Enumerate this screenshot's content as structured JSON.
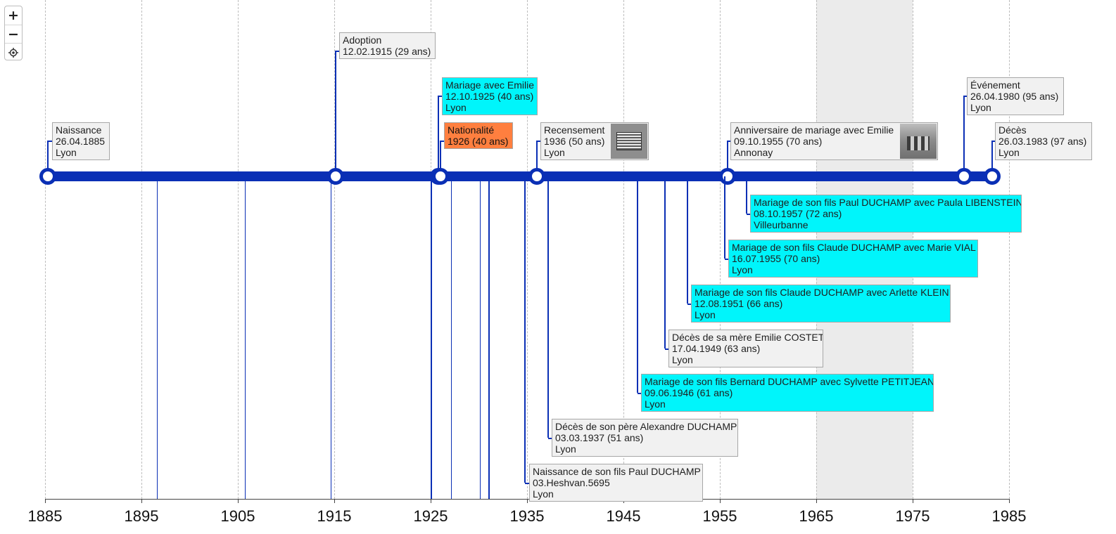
{
  "timeline": {
    "axis_years": [
      1885,
      1895,
      1905,
      1915,
      1925,
      1935,
      1945,
      1955,
      1965,
      1975,
      1985
    ],
    "axis_range": [
      1885,
      1985
    ],
    "shaded_period": [
      1965,
      1975
    ],
    "span": [
      1885.32,
      1983.23
    ],
    "colors": {
      "line": "#0a2fb5",
      "cyan": "#00f5fb",
      "orange": "#ff7f3f",
      "grey_card": "#f1f1f1"
    },
    "stub_lines_years": [
      1896.6,
      1905.7,
      1914.6,
      1925.0,
      1927.1,
      1930.1,
      1931.0
    ]
  },
  "controls": {
    "zoom_in": "+",
    "zoom_out": "−",
    "recenter_icon": "target-icon"
  },
  "events": [
    {
      "id": "naissance",
      "year": 1885.32,
      "marker": true,
      "color": "grey",
      "lines": [
        "Naissance",
        "26.04.1885",
        "Lyon"
      ]
    },
    {
      "id": "adoption",
      "year": 1915.11,
      "marker": true,
      "color": "grey",
      "lines": [
        "Adoption",
        "12.02.1915 (29 ans)"
      ]
    },
    {
      "id": "mariage-emilie",
      "year": 1925.78,
      "marker": true,
      "color": "cyan",
      "lines": [
        "Mariage avec Emilie",
        "12.10.1925 (40 ans)",
        "Lyon"
      ]
    },
    {
      "id": "nationalite",
      "year": 1926.0,
      "marker": true,
      "color": "orange",
      "lines": [
        "Nationalité",
        "1926 (40 ans)"
      ]
    },
    {
      "id": "recensement",
      "year": 1936.0,
      "marker": true,
      "color": "grey",
      "thumbnail": "document",
      "lines": [
        "Recensement",
        "1936 (50 ans)",
        "Lyon"
      ]
    },
    {
      "id": "anniversaire-mariage",
      "year": 1955.77,
      "marker": true,
      "color": "grey",
      "thumbnail": "photo",
      "lines": [
        "Anniversaire de mariage avec Emilie",
        "09.10.1955 (70 ans)",
        "Annonay"
      ]
    },
    {
      "id": "evenement",
      "year": 1980.32,
      "marker": true,
      "color": "grey",
      "lines": [
        "Événement",
        "26.04.1980 (95 ans)",
        "Lyon"
      ]
    },
    {
      "id": "deces",
      "year": 1983.23,
      "marker": true,
      "color": "grey",
      "lines": [
        "Décès",
        "26.03.1983 (97 ans)",
        "Lyon"
      ]
    },
    {
      "id": "mariage-paul",
      "year": 1957.77,
      "marker": false,
      "color": "cyan",
      "lines": [
        "Mariage de son fils Paul DUCHAMP avec Paula LIBENSTEIN",
        "08.10.1957 (72 ans)",
        "Villeurbanne"
      ]
    },
    {
      "id": "mariage-claude-vial",
      "year": 1955.54,
      "marker": false,
      "color": "cyan",
      "lines": [
        "Mariage de son fils Claude DUCHAMP avec Marie VIAL",
        "16.07.1955 (70 ans)",
        "Lyon"
      ]
    },
    {
      "id": "mariage-claude-klein",
      "year": 1951.61,
      "marker": false,
      "color": "cyan",
      "lines": [
        "Mariage de son fils Claude DUCHAMP avec Arlette KLEIN",
        "12.08.1951 (66 ans)",
        "Lyon"
      ]
    },
    {
      "id": "deces-mere",
      "year": 1949.29,
      "marker": false,
      "color": "grey",
      "lines": [
        "Décès de sa mère Emilie COSTET",
        "17.04.1949 (63 ans)",
        "Lyon"
      ]
    },
    {
      "id": "mariage-bernard",
      "year": 1946.44,
      "marker": false,
      "color": "cyan",
      "lines": [
        "Mariage de son fils Bernard DUCHAMP avec Sylvette PETITJEAN",
        "09.06.1946 (61 ans)",
        "Lyon"
      ]
    },
    {
      "id": "deces-pere",
      "year": 1937.17,
      "marker": false,
      "color": "grey",
      "lines": [
        "Décès de son père Alexandre DUCHAMP",
        "03.03.1937 (51 ans)",
        "Lyon"
      ]
    },
    {
      "id": "naissance-paul",
      "year": 1934.8,
      "marker": false,
      "color": "grey",
      "lines": [
        "Naissance de son fils Paul DUCHAMP",
        "03.Heshvan.5695",
        "Lyon"
      ]
    }
  ]
}
